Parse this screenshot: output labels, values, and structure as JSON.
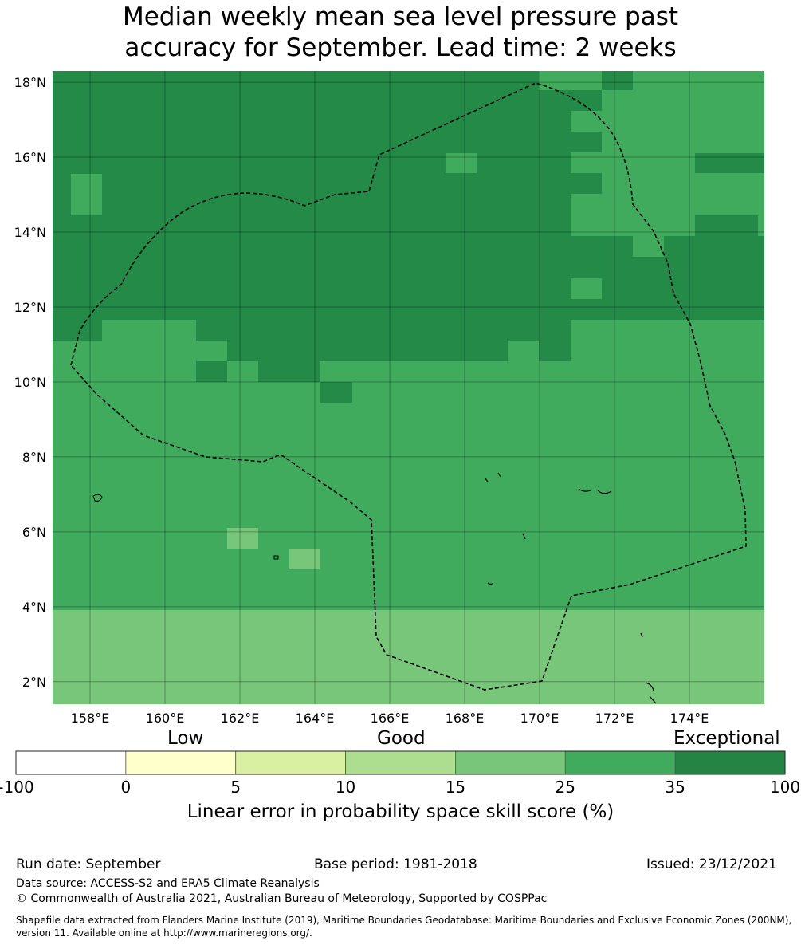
{
  "title": {
    "line1": "Median weekly mean sea level pressure past",
    "line2": "accuracy for September. Lead time: 2 weeks"
  },
  "map": {
    "lon_ticks": [
      "158°E",
      "160°E",
      "162°E",
      "164°E",
      "166°E",
      "168°E",
      "170°E",
      "172°E",
      "174°E"
    ],
    "lat_ticks": [
      "18°N",
      "16°N",
      "14°N",
      "12°N",
      "10°N",
      "8°N",
      "6°N",
      "4°N",
      "2°N"
    ],
    "lon_range": [
      157.0,
      176.0
    ],
    "lat_range": [
      1.4,
      18.3
    ],
    "colors": {
      "35-100": "#238a48",
      "25-35": "#41ab5d",
      "15-25": "#78c679",
      "grid": "#000000",
      "boundary": "#000000"
    }
  },
  "colorbar": {
    "categories": [
      "Low",
      "Good",
      "Exceptional"
    ],
    "ticks": [
      "-100",
      "0",
      "5",
      "10",
      "15",
      "25",
      "35",
      "100"
    ],
    "colors": [
      "#ffffff",
      "#ffffcc",
      "#d9f0a3",
      "#addd8e",
      "#78c679",
      "#41ab5d",
      "#238443"
    ],
    "label": "Linear error in probability space skill score (%)"
  },
  "footer": {
    "run_date": "Run date: September",
    "base_period": "Base period: 1981-2018",
    "issued": "Issued: 23/12/2021",
    "data_source": "Data source: ACCESS-S2 and ERA5 Climate Reanalysis",
    "copyright": "© Commonwealth of Australia 2021, Australian Bureau of Meteorology, Supported by COSPPac",
    "shapefile": "Shapefile data extracted from Flanders Marine Institute (2019), Maritime Boundaries Geodatabase: Maritime Boundaries and Exclusive Economic Zones (200NM), version 11. Available online at http://www.marineregions.org/."
  }
}
